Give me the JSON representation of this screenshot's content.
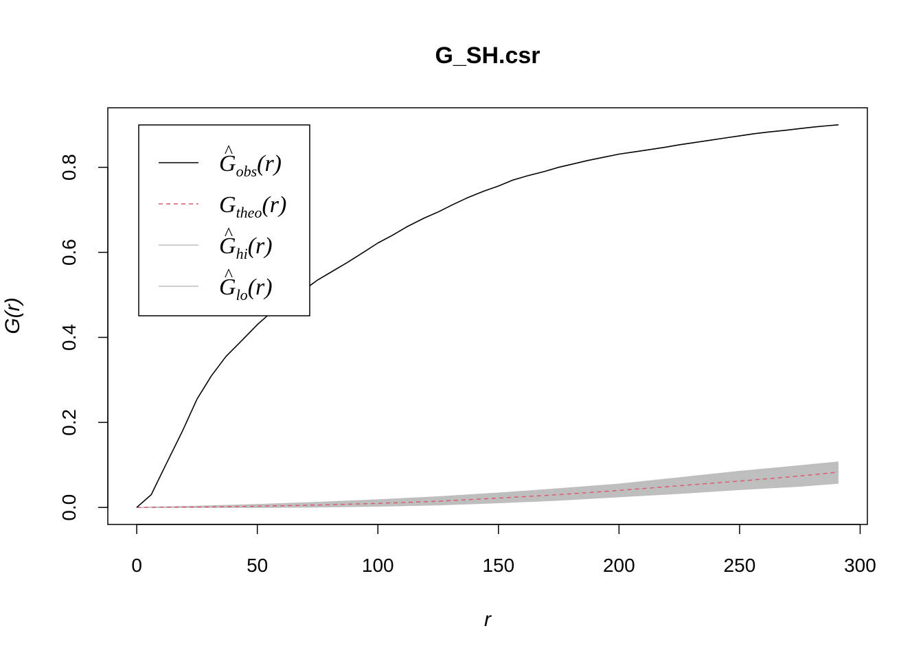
{
  "chart_data": {
    "type": "line",
    "title": "G_SH.csr",
    "xlabel": "r",
    "ylabel_main": "G",
    "ylabel_arg": "(r)",
    "xlim": [
      -12,
      303
    ],
    "ylim": [
      -0.04,
      0.94
    ],
    "x_ticks": [
      0,
      50,
      100,
      150,
      200,
      250,
      300
    ],
    "x_tick_labels": [
      "0",
      "50",
      "100",
      "150",
      "200",
      "250",
      "300"
    ],
    "y_ticks": [
      0.0,
      0.2,
      0.4,
      0.6,
      0.8
    ],
    "y_tick_labels": [
      "0.0",
      "0.2",
      "0.4",
      "0.6",
      "0.8"
    ],
    "grid": false,
    "legend_position": "top-left",
    "series": [
      {
        "key": "obs",
        "base": "G",
        "hat": true,
        "sub": "obs",
        "arg": "(r)",
        "color": "#000000",
        "dash": "solid",
        "x": [
          0,
          6,
          12,
          19,
          25,
          31,
          37,
          44,
          50,
          56,
          62,
          69,
          75,
          81,
          87,
          94,
          100,
          106,
          112,
          119,
          125,
          131,
          137,
          144,
          150,
          156,
          162,
          169,
          175,
          181,
          187,
          194,
          200,
          206,
          212,
          219,
          225,
          231,
          237,
          244,
          250,
          256,
          262,
          269,
          275,
          281,
          287,
          291
        ],
        "y": [
          0.0,
          0.03,
          0.1,
          0.18,
          0.255,
          0.31,
          0.355,
          0.395,
          0.43,
          0.46,
          0.482,
          0.51,
          0.535,
          0.555,
          0.575,
          0.6,
          0.622,
          0.64,
          0.66,
          0.68,
          0.695,
          0.712,
          0.728,
          0.744,
          0.756,
          0.77,
          0.78,
          0.79,
          0.8,
          0.808,
          0.816,
          0.824,
          0.831,
          0.836,
          0.841,
          0.847,
          0.853,
          0.858,
          0.863,
          0.869,
          0.874,
          0.879,
          0.883,
          0.887,
          0.891,
          0.895,
          0.898,
          0.9
        ]
      },
      {
        "key": "theo",
        "base": "G",
        "hat": false,
        "sub": "theo",
        "arg": "(r)",
        "color": "#df536b",
        "dash": "dashed",
        "x": [
          0,
          25,
          50,
          75,
          100,
          125,
          150,
          175,
          200,
          225,
          250,
          275,
          291
        ],
        "y": [
          0.0,
          0.001,
          0.003,
          0.0055,
          0.0095,
          0.0145,
          0.022,
          0.03,
          0.04,
          0.051,
          0.062,
          0.074,
          0.083
        ]
      },
      {
        "key": "hi",
        "base": "G",
        "hat": true,
        "sub": "hi",
        "arg": "(r)",
        "color": "#bebebe",
        "dash": "solid",
        "x": [
          0,
          25,
          50,
          75,
          100,
          125,
          150,
          175,
          200,
          225,
          250,
          275,
          291
        ],
        "y": [
          0.0,
          0.003,
          0.007,
          0.012,
          0.018,
          0.025,
          0.034,
          0.044,
          0.055,
          0.07,
          0.085,
          0.098,
          0.107
        ]
      },
      {
        "key": "lo",
        "base": "G",
        "hat": true,
        "sub": "lo",
        "arg": "(r)",
        "color": "#bebebe",
        "dash": "solid",
        "x": [
          0,
          25,
          50,
          75,
          100,
          125,
          150,
          175,
          200,
          225,
          250,
          275,
          291
        ],
        "y": [
          0.0,
          0.0,
          0.0,
          0.001,
          0.003,
          0.006,
          0.011,
          0.017,
          0.025,
          0.033,
          0.042,
          0.05,
          0.057
        ]
      }
    ]
  }
}
